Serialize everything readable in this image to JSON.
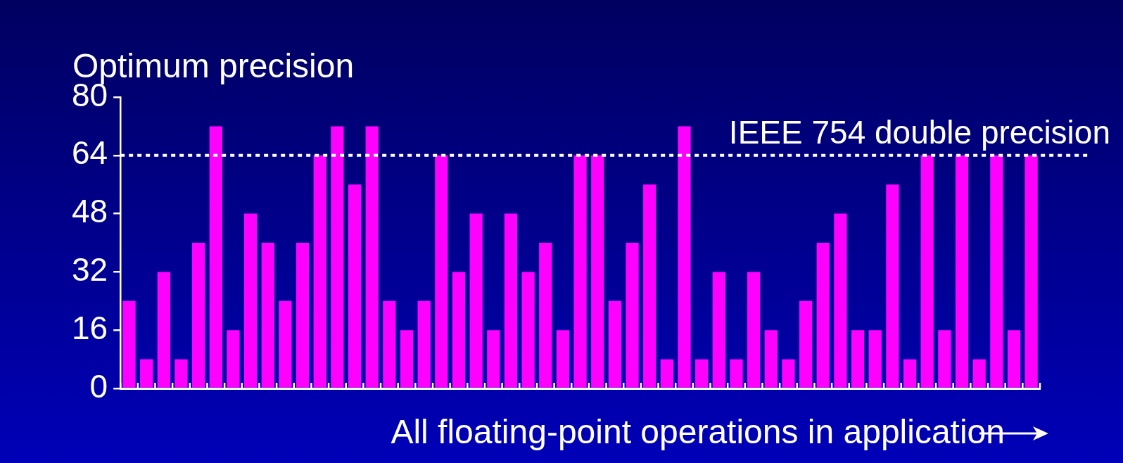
{
  "chart_data": {
    "type": "bar",
    "ylabel": "Optimum precision",
    "xlabel": "All floating-point operations in application",
    "categories": [
      null,
      null,
      null,
      null,
      null,
      null,
      null,
      null,
      null,
      null,
      null,
      null,
      null,
      null,
      null,
      null,
      null,
      null,
      null,
      null,
      null,
      null,
      null,
      null,
      null,
      null,
      null,
      null,
      null,
      null,
      null,
      null,
      null,
      null,
      null,
      null,
      null,
      null,
      null,
      null,
      null,
      null,
      null,
      null,
      null,
      null,
      null,
      null,
      null,
      null,
      null,
      null,
      null
    ],
    "values": [
      24,
      8,
      32,
      8,
      40,
      72,
      16,
      48,
      40,
      24,
      40,
      64,
      72,
      56,
      72,
      24,
      16,
      24,
      64,
      32,
      48,
      16,
      48,
      32,
      40,
      16,
      64,
      64,
      24,
      40,
      56,
      8,
      72,
      8,
      32,
      8,
      32,
      16,
      8,
      24,
      40,
      48,
      16,
      16,
      56,
      8,
      64,
      16,
      64,
      8,
      64,
      16,
      64
    ],
    "color": "#ff00ff",
    "ylim": [
      0,
      80
    ],
    "yticks": [
      0,
      16,
      32,
      48,
      64,
      80
    ],
    "grid": false,
    "legend": false,
    "ref_lines": [
      {
        "axis": "y",
        "value": 64,
        "label": "IEEE 754 double precision",
        "color": "#ffffff",
        "line_style": "dotted"
      }
    ]
  }
}
